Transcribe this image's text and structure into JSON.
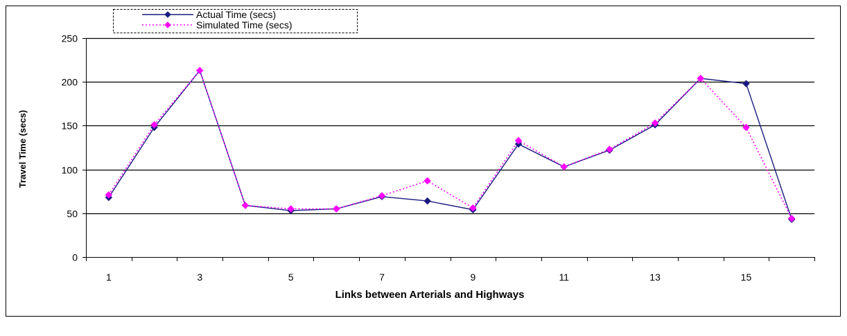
{
  "chart_data": {
    "type": "line",
    "xlabel": "Links between Arterials and Highways",
    "ylabel": "Travel Time (secs)",
    "x": [
      1,
      2,
      3,
      4,
      5,
      6,
      7,
      8,
      9,
      10,
      11,
      12,
      13,
      14,
      15,
      16
    ],
    "x_tick_labels": [
      "1",
      "3",
      "5",
      "7",
      "9",
      "11",
      "13",
      "15"
    ],
    "y_tick_labels": [
      "0",
      "50",
      "100",
      "150",
      "200",
      "250"
    ],
    "ylim": [
      0,
      250
    ],
    "grid": "horizontal major gridlines",
    "legend_position": "top-left",
    "series": [
      {
        "name": "Actual Time (secs)",
        "values": [
          68,
          148,
          213,
          59,
          53,
          55,
          69,
          64,
          54,
          129,
          103,
          122,
          151,
          204,
          198,
          43
        ],
        "color": "#1a1a80",
        "marker": "diamond",
        "line_style": "solid"
      },
      {
        "name": "Simulated Time (secs)",
        "values": [
          71,
          151,
          213,
          59,
          55,
          55,
          70,
          87,
          56,
          133,
          103,
          123,
          153,
          204,
          148,
          44
        ],
        "color": "#ff00ff",
        "marker": "diamond",
        "line_style": "dotted"
      }
    ]
  }
}
